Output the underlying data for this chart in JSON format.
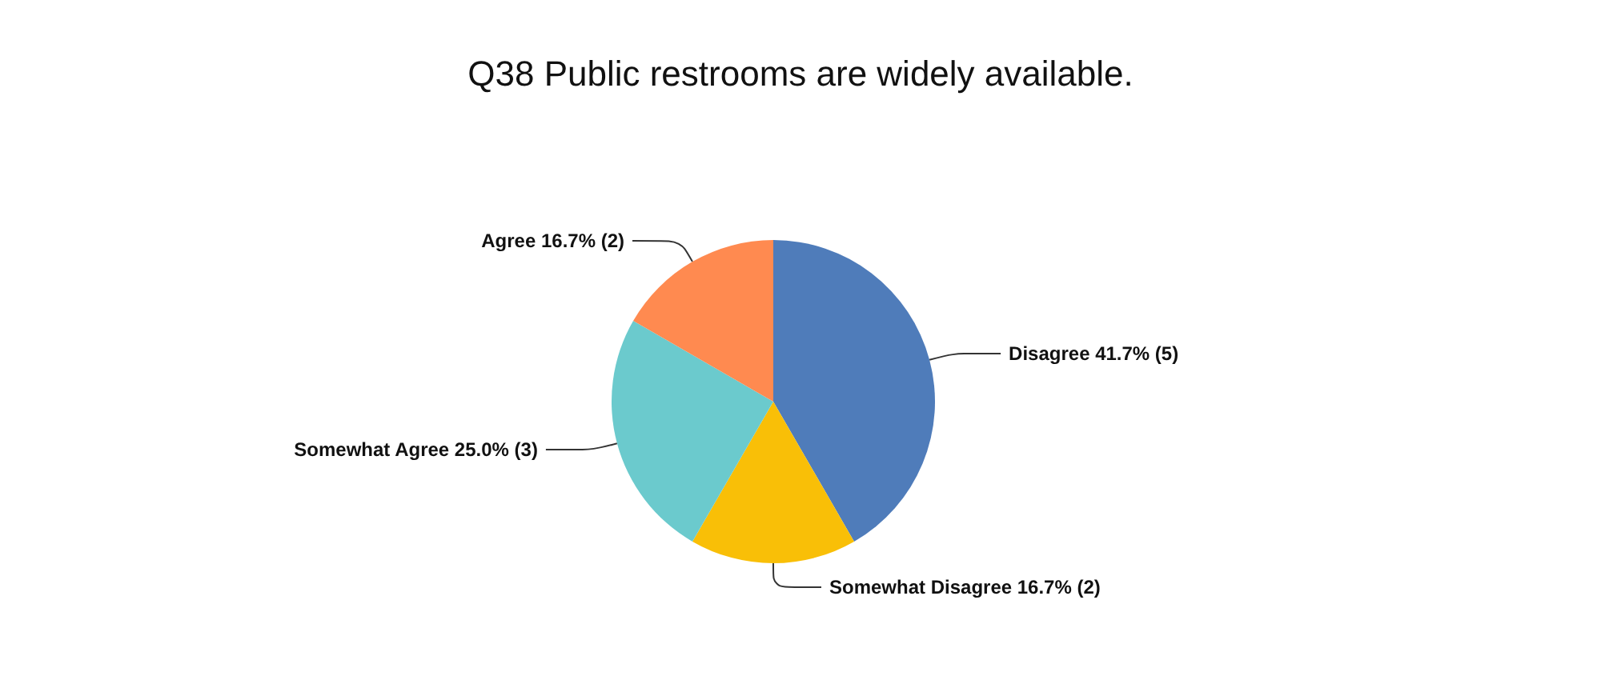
{
  "chart_data": {
    "type": "pie",
    "title": "Q38 Public restrooms are widely available.",
    "categories": [
      "Disagree",
      "Somewhat Disagree",
      "Somewhat Agree",
      "Agree"
    ],
    "values": [
      5,
      2,
      3,
      2
    ],
    "value_labels": [
      "41.7% (5)",
      "16.7% (2)",
      "25.0% (3)",
      "16.7% (2)"
    ],
    "colors": [
      "#4f7cba",
      "#f9bf07",
      "#6bcacd",
      "#ff8a50"
    ],
    "legend": false
  }
}
